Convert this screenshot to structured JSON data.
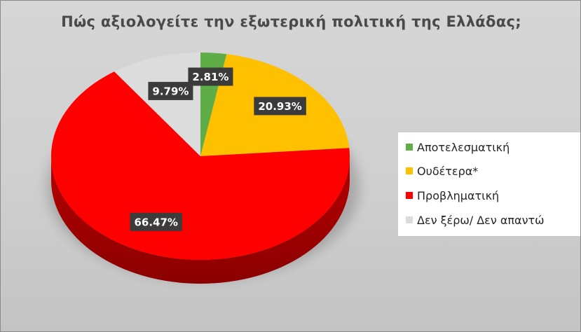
{
  "chart_data": {
    "type": "pie",
    "title": "Πώς αξιολογείτε την εξωτερική πολιτική της Ελλάδας;",
    "legend_position": "right",
    "slices": [
      {
        "label": "Αποτελεσματική",
        "value": 2.81,
        "value_label": "2.81%",
        "color": "#5fad46"
      },
      {
        "label": "Ουδέτερα*",
        "value": 20.93,
        "value_label": "20.93%",
        "color": "#ffc000"
      },
      {
        "label": "Προβληματική",
        "value": 66.47,
        "value_label": "66.47%",
        "color": "#ff0000"
      },
      {
        "label": "Δεν ξέρω/ Δεν απαντώ",
        "value": 9.79,
        "value_label": "9.79%",
        "color": "#dcdcdc"
      }
    ]
  }
}
